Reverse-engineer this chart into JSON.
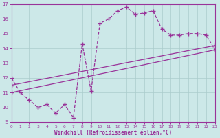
{
  "line1_x": [
    0,
    1,
    2,
    3,
    4,
    5,
    6,
    7,
    8,
    9,
    10,
    11,
    12,
    13,
    14,
    15,
    16,
    17,
    18,
    19,
    20,
    21,
    22,
    23
  ],
  "line1_y": [
    12.0,
    11.0,
    10.5,
    10.0,
    10.2,
    9.6,
    10.2,
    9.3,
    14.3,
    11.1,
    15.7,
    16.0,
    16.55,
    16.8,
    16.3,
    16.4,
    16.55,
    15.3,
    14.9,
    14.9,
    15.0,
    15.0,
    14.9,
    13.9
  ],
  "line2_x": [
    0,
    23
  ],
  "line2_y": [
    11.0,
    13.9
  ],
  "line3_x": [
    0,
    23
  ],
  "line3_y": [
    11.5,
    14.2
  ],
  "bg_color": "#cce8e8",
  "line_color": "#993399",
  "grid_color": "#aacccc",
  "xlabel": "Windchill (Refroidissement éolien,°C)",
  "xlim": [
    0,
    23
  ],
  "ylim": [
    9,
    17
  ],
  "yticks": [
    9,
    10,
    11,
    12,
    13,
    14,
    15,
    16,
    17
  ],
  "xticks": [
    0,
    1,
    2,
    3,
    4,
    5,
    6,
    7,
    8,
    9,
    10,
    11,
    12,
    13,
    14,
    15,
    16,
    17,
    18,
    19,
    20,
    21,
    22,
    23
  ]
}
